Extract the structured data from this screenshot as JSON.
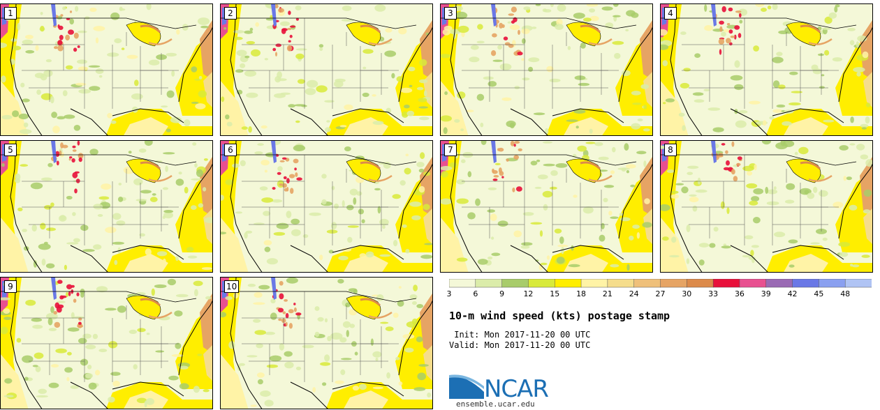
{
  "panels": [
    {
      "label": "1"
    },
    {
      "label": "2"
    },
    {
      "label": "3"
    },
    {
      "label": "4"
    },
    {
      "label": "5"
    },
    {
      "label": "6"
    },
    {
      "label": "7"
    },
    {
      "label": "8"
    },
    {
      "label": "9"
    },
    {
      "label": "10"
    }
  ],
  "legend": {
    "ticks": [
      "3",
      "6",
      "9",
      "12",
      "15",
      "18",
      "21",
      "24",
      "27",
      "30",
      "33",
      "36",
      "39",
      "42",
      "45",
      "48"
    ],
    "colors": [
      "#f4f8d8",
      "#dbecaa",
      "#a8cc6a",
      "#d8ea3a",
      "#ffee00",
      "#fff3a6",
      "#f5dd8c",
      "#efc07a",
      "#e6a464",
      "#dc8a4a",
      "#e8103a",
      "#e85090",
      "#9a6ab4",
      "#6a78e6",
      "#8aa0f0",
      "#b0c4f4"
    ]
  },
  "title": "10-m wind speed (kts) postage stamp",
  "init": " Init: Mon 2017-11-20 00 UTC",
  "valid": "Valid: Mon 2017-11-20 00 UTC",
  "logo": {
    "text": "NCAR"
  },
  "site": "ensemble.ucar.edu"
}
